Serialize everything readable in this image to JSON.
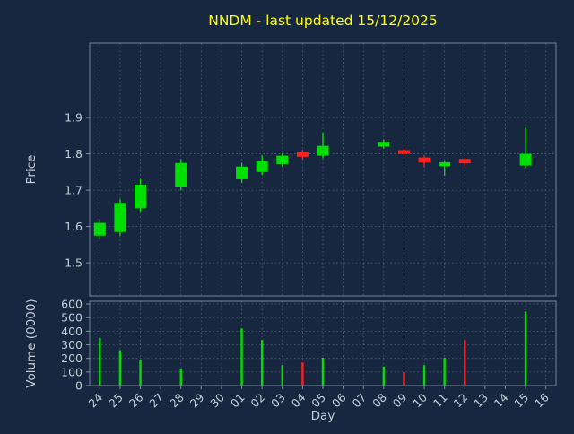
{
  "colors": {
    "background": "#16273f",
    "title": "#ffff00",
    "text": "#c4cdd8",
    "grid": "#93a1b1",
    "frame": "#8191a3",
    "up": "#00e000",
    "down": "#ff2020"
  },
  "chart_data": {
    "type": "candlestick",
    "title": "NNDM - last updated 15/12/2025",
    "xlabel": "Day",
    "ylabel_price": "Price",
    "ylabel_volume": "Volume (0000)",
    "grid": true,
    "x_tick_rotation_deg": 45,
    "x_categories": [
      "24",
      "25",
      "26",
      "27",
      "28",
      "29",
      "30",
      "01",
      "02",
      "03",
      "04",
      "05",
      "06",
      "07",
      "08",
      "09",
      "10",
      "11",
      "12",
      "13",
      "14",
      "15",
      "16"
    ],
    "price_ticks": [
      1.5,
      1.6,
      1.7,
      1.8,
      1.9
    ],
    "price_ylim": [
      1.409,
      2.105
    ],
    "volume_ticks": [
      0,
      100,
      200,
      300,
      400,
      500,
      600
    ],
    "volume_ylim": [
      0,
      620
    ],
    "candles": [
      {
        "day": "24",
        "x": 0,
        "open": 1.575,
        "high": 1.62,
        "low": 1.565,
        "close": 1.61,
        "volume": 350,
        "up": true,
        "vol_up": true
      },
      {
        "day": "25",
        "x": 1,
        "open": 1.585,
        "high": 1.675,
        "low": 1.575,
        "close": 1.665,
        "volume": 260,
        "up": true,
        "vol_up": true
      },
      {
        "day": "26",
        "x": 2,
        "open": 1.65,
        "high": 1.73,
        "low": 1.64,
        "close": 1.715,
        "volume": 190,
        "up": true,
        "vol_up": true
      },
      {
        "day": "28",
        "x": 4,
        "open": 1.71,
        "high": 1.785,
        "low": 1.7,
        "close": 1.775,
        "volume": 125,
        "up": true,
        "vol_up": true
      },
      {
        "day": "01",
        "x": 7,
        "open": 1.73,
        "high": 1.775,
        "low": 1.72,
        "close": 1.765,
        "volume": 420,
        "up": true,
        "vol_up": true
      },
      {
        "day": "02",
        "x": 8,
        "open": 1.75,
        "high": 1.795,
        "low": 1.742,
        "close": 1.78,
        "volume": 335,
        "up": true,
        "vol_up": true
      },
      {
        "day": "03",
        "x": 9,
        "open": 1.772,
        "high": 1.802,
        "low": 1.765,
        "close": 1.795,
        "volume": 150,
        "up": true,
        "vol_up": true
      },
      {
        "day": "04",
        "x": 10,
        "open": 1.805,
        "high": 1.812,
        "low": 1.785,
        "close": 1.792,
        "volume": 170,
        "up": false,
        "vol_up": false
      },
      {
        "day": "05",
        "x": 11,
        "open": 1.795,
        "high": 1.858,
        "low": 1.788,
        "close": 1.822,
        "volume": 205,
        "up": true,
        "vol_up": true
      },
      {
        "day": "08",
        "x": 14,
        "open": 1.82,
        "high": 1.84,
        "low": 1.814,
        "close": 1.833,
        "volume": 140,
        "up": true,
        "vol_up": true
      },
      {
        "day": "09",
        "x": 15,
        "open": 1.81,
        "high": 1.815,
        "low": 1.795,
        "close": 1.8,
        "volume": 100,
        "up": false,
        "vol_up": false
      },
      {
        "day": "10",
        "x": 16,
        "open": 1.79,
        "high": 1.796,
        "low": 1.764,
        "close": 1.776,
        "volume": 150,
        "up": false,
        "vol_up": true
      },
      {
        "day": "11",
        "x": 17,
        "open": 1.766,
        "high": 1.782,
        "low": 1.74,
        "close": 1.777,
        "volume": 205,
        "up": true,
        "vol_up": true
      },
      {
        "day": "12",
        "x": 18,
        "open": 1.786,
        "high": 1.79,
        "low": 1.768,
        "close": 1.774,
        "volume": 335,
        "up": false,
        "vol_up": false
      },
      {
        "day": "15",
        "x": 21,
        "open": 1.768,
        "high": 1.872,
        "low": 1.76,
        "close": 1.8,
        "volume": 545,
        "up": true,
        "vol_up": true
      }
    ]
  }
}
